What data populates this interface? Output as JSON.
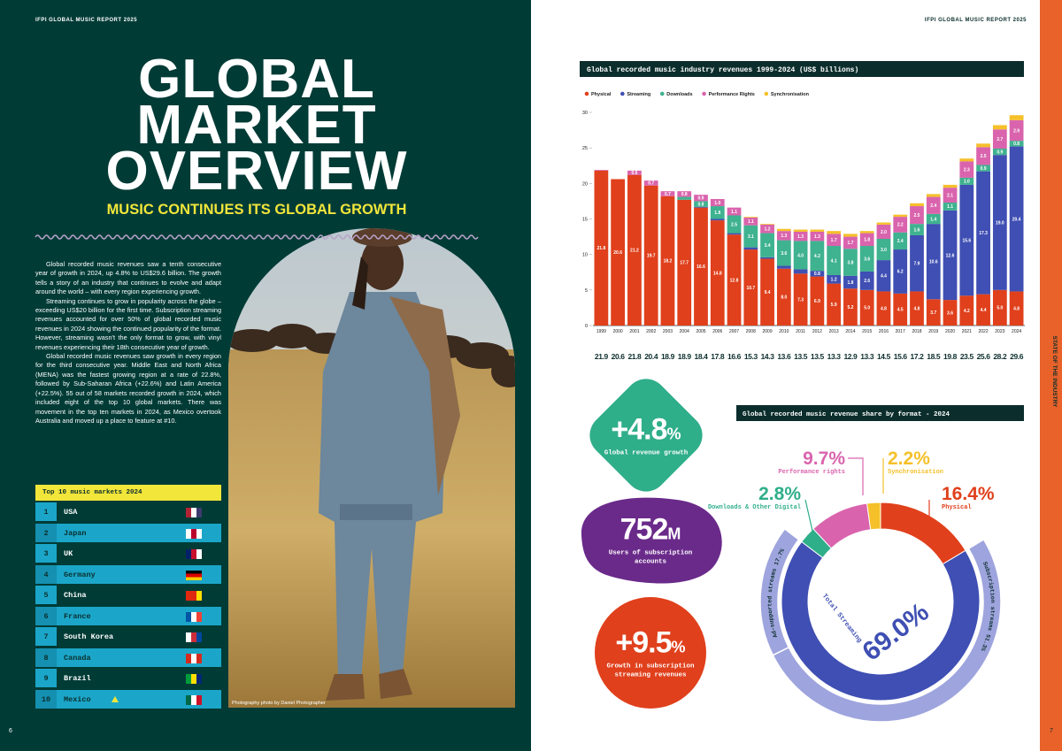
{
  "left_page": {
    "header": "IFPI GLOBAL MUSIC REPORT 2025",
    "title": [
      "GLOBAL",
      "MARKET",
      "OVERVIEW"
    ],
    "subtitle": "MUSIC CONTINUES ITS GLOBAL GROWTH",
    "paragraphs": [
      "Global recorded music revenues saw a tenth consecutive year of growth in 2024, up 4.8% to US$29.6 billion. The growth tells a story of an industry that continues to evolve and adapt around the world – with every region experiencing growth.",
      "Streaming continues to grow in popularity across the globe – exceeding US$20 billion for the first time. Subscription streaming revenues accounted for over 50% of global recorded music revenues in 2024 showing the continued popularity of the format. However, streaming wasn't the only format to grow, with vinyl revenues experiencing their 18th consecutive year of growth.",
      "Global recorded music revenues saw growth in every region for the third consecutive year. Middle East and North Africa (MENA) was the fastest growing region at a rate of 22.8%, followed by Sub-Saharan Africa (+22.6%) and Latin America (+22.5%). 55 out of 58 markets recorded growth in 2024, which included eight of the top 10 global markets. There was movement in the top ten markets in 2024, as Mexico overtook Australia and moved up a place to feature at #10."
    ],
    "top_markets": {
      "title": "Top 10 music markets 2024",
      "rows": [
        [
          1,
          "USA"
        ],
        [
          2,
          "Japan"
        ],
        [
          3,
          "UK"
        ],
        [
          4,
          "Germany"
        ],
        [
          5,
          "China"
        ],
        [
          6,
          "France"
        ],
        [
          7,
          "South Korea"
        ],
        [
          8,
          "Canada"
        ],
        [
          9,
          "Brazil"
        ],
        [
          10,
          "Mexico"
        ]
      ]
    },
    "photo_credit": "Photography photo by Daniel Photographer",
    "page_number": "6"
  },
  "right_page": {
    "header": "IFPI GLOBAL MUSIC REPORT 2025",
    "side_label": "STATE OF THE INDUSTRY",
    "page_number": "7",
    "stats": [
      {
        "figure": "+4.8",
        "unit": "%",
        "label": "Global revenue growth",
        "color": "#2fae8a"
      },
      {
        "figure": "752",
        "unit": "M",
        "label": "Users of subscription accounts",
        "color": "#6a2a8a"
      },
      {
        "figure": "+9.5",
        "unit": "%",
        "label": "Growth in subscription streaming revenues",
        "color": "#e0401c"
      }
    ]
  },
  "chart_data": [
    {
      "type": "stacked_bar",
      "title": "Global recorded music industry revenues 1999-2024 (US$ billions)",
      "categories": [
        "1999",
        "2000",
        "2001",
        "2002",
        "2003",
        "2004",
        "2005",
        "2006",
        "2007",
        "2008",
        "2009",
        "2010",
        "2011",
        "2012",
        "2013",
        "2014",
        "2015",
        "2016",
        "2017",
        "2018",
        "2019",
        "2020",
        "2021",
        "2022",
        "2023",
        "2024"
      ],
      "ylim": [
        0,
        30
      ],
      "yticks": [
        0,
        5,
        10,
        15,
        20,
        25,
        30
      ],
      "legend_position": "top",
      "series": [
        {
          "name": "Physical",
          "color": "#e0401c",
          "values": [
            21.8,
            20.6,
            21.2,
            19.7,
            18.2,
            17.7,
            16.6,
            14.8,
            12.8,
            10.7,
            9.4,
            8.0,
            7.3,
            6.9,
            5.9,
            5.2,
            5.0,
            4.8,
            4.5,
            4.8,
            3.7,
            3.6,
            4.2,
            4.4,
            5.0,
            4.8
          ],
          "value_labels": [
            "21.8",
            "20.6",
            "21.2",
            "19.7",
            "18.2",
            "17.7",
            "16.6",
            "14.8",
            "12.8",
            "10.7",
            "9.4",
            "8.0",
            "7.3",
            "6.9",
            "5.9",
            "5.2",
            "5.0",
            "4.8",
            "4.5",
            "4.8",
            "3.7",
            "3.6",
            "4.2",
            "4.4",
            "5.0",
            "4.8"
          ]
        },
        {
          "name": "Streaming",
          "color": "#3f4fb3",
          "values": [
            null,
            null,
            null,
            null,
            null,
            null,
            0.1,
            0.2,
            0.2,
            0.3,
            0.2,
            0.4,
            0.6,
            0.8,
            1.2,
            1.8,
            2.6,
            4.4,
            6.2,
            7.9,
            10.6,
            12.6,
            15.6,
            17.3,
            19.0,
            20.4
          ],
          "value_labels": [
            null,
            null,
            null,
            null,
            null,
            null,
            null,
            null,
            null,
            null,
            null,
            null,
            null,
            "0.8",
            "1.2",
            "1.8",
            "2.6",
            "4.4",
            "6.2",
            "7.9",
            "10.6",
            "12.6",
            "15.6",
            "17.3",
            "19.0",
            "20.4"
          ]
        },
        {
          "name": "Downloads",
          "color": "#3fb28f",
          "values": [
            null,
            null,
            null,
            null,
            null,
            0.4,
            0.8,
            1.8,
            2.5,
            3.1,
            3.4,
            3.6,
            4.0,
            4.2,
            4.1,
            3.8,
            3.6,
            3.0,
            2.4,
            1.6,
            1.4,
            1.1,
            1.0,
            0.9,
            0.9,
            0.8
          ],
          "value_labels": [
            null,
            null,
            null,
            null,
            null,
            null,
            "0.8",
            "1.8",
            "2.5",
            "3.1",
            "3.4",
            "3.6",
            "4.0",
            "4.2",
            "4.1",
            "3.8",
            "3.6",
            "3.0",
            "2.4",
            "1.6",
            "1.4",
            "1.1",
            "1.0",
            "0.9",
            "0.9",
            "0.8"
          ]
        },
        {
          "name": "Performance Rights",
          "color": "#d964ad",
          "values": [
            0.1,
            null,
            0.6,
            0.7,
            0.7,
            0.8,
            0.9,
            1.0,
            1.1,
            1.1,
            1.2,
            1.3,
            1.3,
            1.3,
            1.7,
            1.7,
            1.8,
            2.0,
            2.2,
            2.5,
            2.4,
            2.1,
            2.3,
            2.5,
            2.7,
            2.9
          ],
          "value_labels": [
            null,
            null,
            "0.6",
            "0.7",
            "0.7",
            "0.8",
            "0.9",
            "1.0",
            "1.1",
            "1.1",
            "1.2",
            "1.3",
            "1.3",
            "1.3",
            "1.7",
            "1.7",
            "1.8",
            "2.0",
            "2.2",
            "2.5",
            "2.4",
            "2.1",
            "2.3",
            "2.5",
            "2.7",
            "2.9"
          ]
        },
        {
          "name": "Synchronisation",
          "color": "#f5c02a",
          "values": [
            null,
            null,
            null,
            null,
            null,
            null,
            null,
            null,
            null,
            0.1,
            0.1,
            0.3,
            0.3,
            0.3,
            0.4,
            0.4,
            0.3,
            0.3,
            0.3,
            0.4,
            0.4,
            0.4,
            0.4,
            0.5,
            0.6,
            0.7
          ]
        }
      ],
      "total_labels": [
        "21.9",
        "20.6",
        "21.8",
        "20.4",
        "18.9",
        "18.9",
        "18.4",
        "17.8",
        "16.6",
        "15.3",
        "14.3",
        "13.6",
        "13.5",
        "13.5",
        "13.3",
        "12.9",
        "13.3",
        "14.5",
        "15.6",
        "17.2",
        "18.5",
        "19.8",
        "23.5",
        "25.6",
        "28.2",
        "29.6"
      ]
    },
    {
      "type": "donut",
      "title": "Global recorded music revenue share by format - 2024",
      "categories": [
        "Physical",
        "Total Streaming",
        "Downloads & Other Digital",
        "Performance rights",
        "Synchronisation"
      ],
      "values": [
        16.4,
        69.0,
        2.8,
        9.7,
        2.2
      ],
      "value_labels": [
        "16.4%",
        "69.0%",
        "2.8%",
        "9.7%",
        "2.2%"
      ],
      "colors": [
        "#e0401c",
        "#3f4fb3",
        "#2fae8a",
        "#d964ad",
        "#f5c02a"
      ],
      "streaming_breakdown": {
        "categories": [
          "Subscription streams",
          "Ad-supported streams"
        ],
        "values": [
          51.3,
          17.7
        ],
        "value_labels": [
          "51.3%",
          "17.7%"
        ],
        "color": "#9ea4dd"
      }
    }
  ]
}
